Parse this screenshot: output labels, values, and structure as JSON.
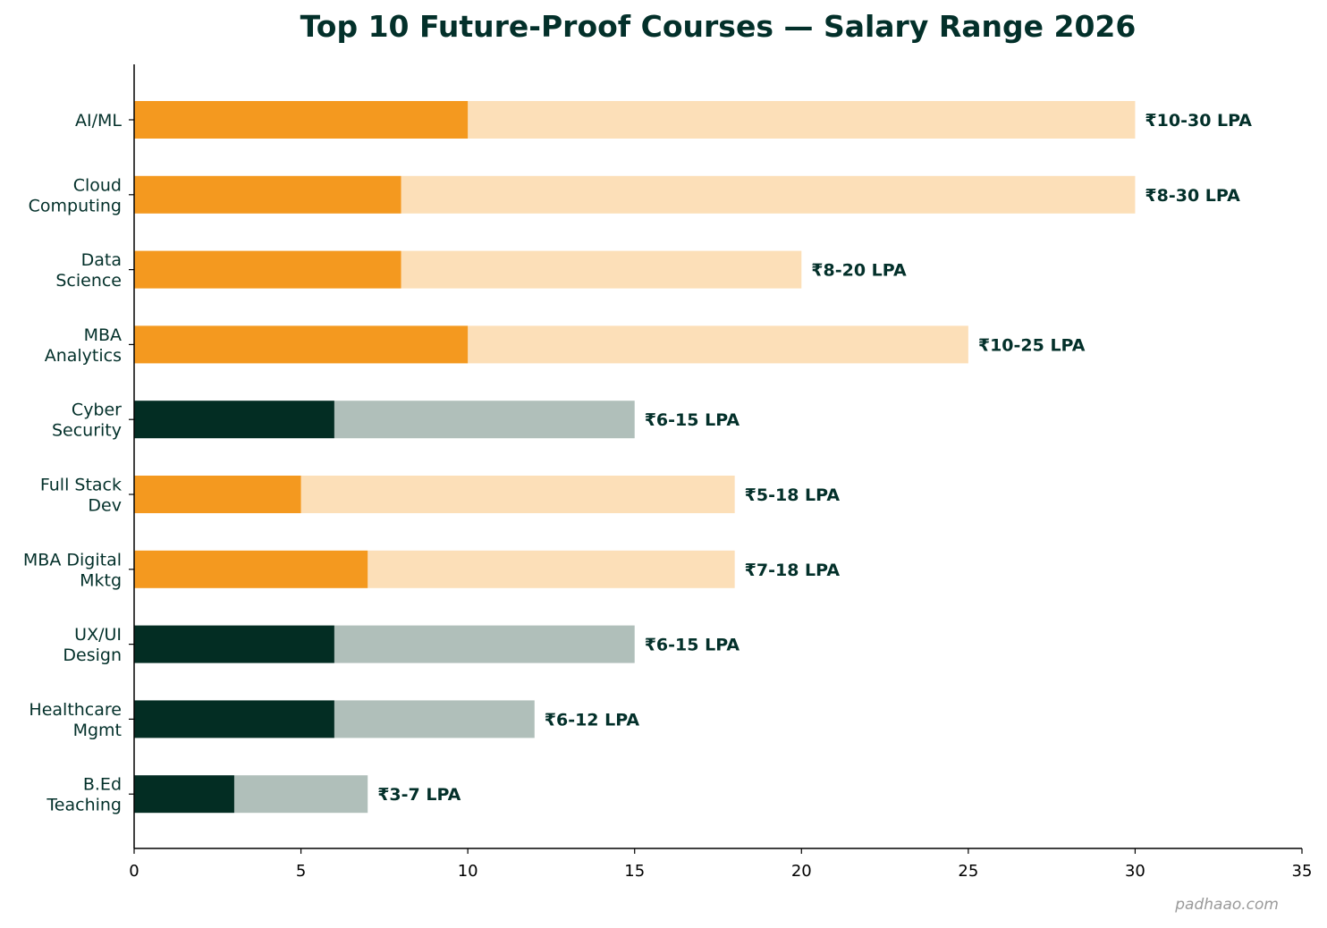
{
  "chart_data": {
    "type": "bar",
    "subtype": "stacked-horizontal-range",
    "title": "Top 10 Future-Proof Courses — Salary Range 2026",
    "xlabel": "",
    "ylabel": "",
    "xlim": [
      0,
      35
    ],
    "xticks": [
      0,
      5,
      10,
      15,
      20,
      25,
      30,
      35
    ],
    "grid": false,
    "categories": [
      [
        "AI/ML"
      ],
      [
        "Cloud",
        "Computing"
      ],
      [
        "Data",
        "Science"
      ],
      [
        "MBA",
        "Analytics"
      ],
      [
        "Cyber",
        "Security"
      ],
      [
        "Full Stack",
        "Dev"
      ],
      [
        "MBA Digital",
        "Mktg"
      ],
      [
        "UX/UI",
        "Design"
      ],
      [
        "Healthcare",
        "Mgmt"
      ],
      [
        "B.Ed",
        "Teaching"
      ]
    ],
    "min": [
      10,
      8,
      8,
      10,
      6,
      5,
      7,
      6,
      6,
      3
    ],
    "max": [
      30,
      30,
      20,
      25,
      15,
      18,
      18,
      15,
      12,
      7
    ],
    "highlight": [
      true,
      true,
      true,
      true,
      false,
      true,
      true,
      false,
      false,
      false
    ],
    "labels": [
      "₹10-30 LPA",
      "₹8-30 LPA",
      "₹8-20 LPA",
      "₹10-25 LPA",
      "₹6-15 LPA",
      "₹5-18 LPA",
      "₹7-18 LPA",
      "₹6-15 LPA",
      "₹6-12 LPA",
      "₹3-7 LPA"
    ],
    "colors": {
      "highlight_min": "#F4991F",
      "highlight_range": "#FCDFB8",
      "other_min": "#032D23",
      "other_range": "#B0BFBA",
      "text": "#03302a"
    }
  },
  "watermark": "padhaao.com"
}
